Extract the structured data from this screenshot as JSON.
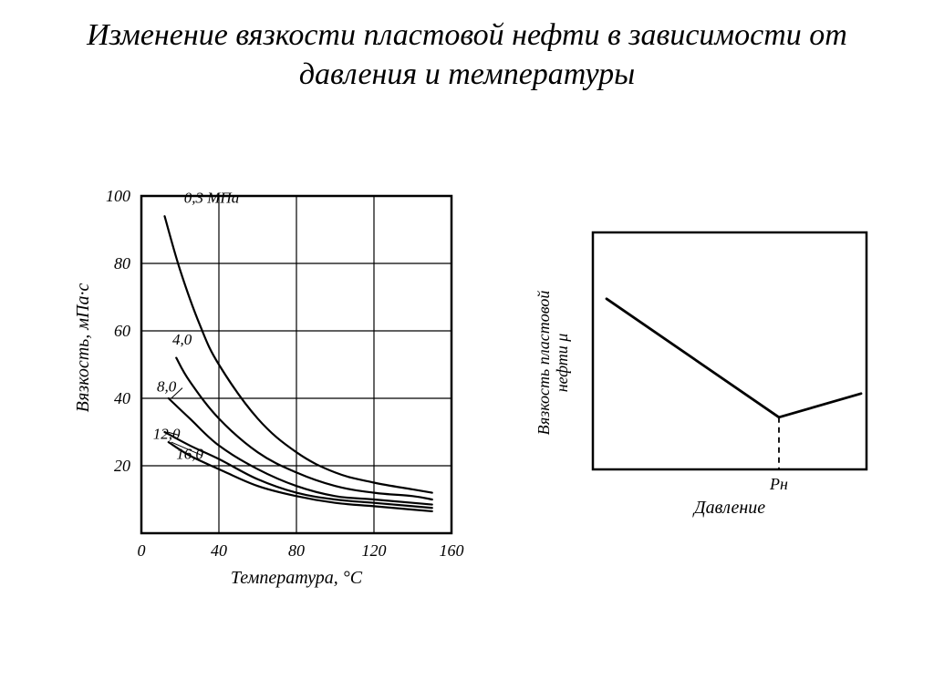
{
  "title": "Изменение вязкости пластовой нефти в зависимости от давления и температуры",
  "colors": {
    "background": "#ffffff",
    "ink": "#000000",
    "title": "#1a1a1a"
  },
  "title_fontsize": 34,
  "label_font": "italic 18px serif",
  "axis_font": "italic 16px serif",
  "chart_left": {
    "type": "line",
    "x_label": "Температура, °С",
    "y_label": "Вязкость, мПа·с",
    "xlim": [
      0,
      160
    ],
    "ylim": [
      0,
      100
    ],
    "xtick_step": 40,
    "ytick_step": 20,
    "xticks": [
      "0",
      "40",
      "80",
      "120",
      "160"
    ],
    "yticks": [
      "0",
      "20",
      "40",
      "60",
      "80",
      "100"
    ],
    "grid": true,
    "grid_color": "#000000",
    "line_width_axis": 2.5,
    "line_width_grid": 1.2,
    "line_width_curve": 2.2,
    "unit_annotation": "мПа",
    "series": [
      {
        "label": "0,3",
        "label_suffix": " МПа",
        "points": [
          [
            12,
            94
          ],
          [
            20,
            78
          ],
          [
            30,
            62
          ],
          [
            40,
            50
          ],
          [
            60,
            34
          ],
          [
            80,
            24
          ],
          [
            100,
            18
          ],
          [
            120,
            15
          ],
          [
            140,
            13
          ],
          [
            150,
            12
          ]
        ]
      },
      {
        "label": "4,0",
        "points": [
          [
            18,
            52
          ],
          [
            25,
            45
          ],
          [
            40,
            34
          ],
          [
            60,
            24
          ],
          [
            80,
            18
          ],
          [
            100,
            14
          ],
          [
            120,
            12
          ],
          [
            140,
            11
          ],
          [
            150,
            10
          ]
        ]
      },
      {
        "label": "8,0",
        "points": [
          [
            14,
            40
          ],
          [
            25,
            34
          ],
          [
            40,
            26
          ],
          [
            60,
            19
          ],
          [
            80,
            14
          ],
          [
            100,
            11
          ],
          [
            120,
            10
          ],
          [
            140,
            9
          ],
          [
            150,
            8.5
          ]
        ]
      },
      {
        "label": "12,0",
        "points": [
          [
            12,
            30
          ],
          [
            25,
            26
          ],
          [
            40,
            22
          ],
          [
            60,
            16
          ],
          [
            80,
            12
          ],
          [
            100,
            10
          ],
          [
            120,
            9
          ],
          [
            140,
            8
          ],
          [
            150,
            7.5
          ]
        ]
      },
      {
        "label": "16,0",
        "points": [
          [
            14,
            27
          ],
          [
            25,
            23
          ],
          [
            40,
            19
          ],
          [
            60,
            14
          ],
          [
            80,
            11
          ],
          [
            100,
            9
          ],
          [
            120,
            8
          ],
          [
            140,
            7
          ],
          [
            150,
            6.5
          ]
        ]
      }
    ],
    "series_label_positions": [
      {
        "x": 22,
        "y": 98
      },
      {
        "x": 16,
        "y": 56
      },
      {
        "x": 8,
        "y": 42
      },
      {
        "x": 6,
        "y": 28
      },
      {
        "x": 18,
        "y": 22
      }
    ]
  },
  "chart_right": {
    "type": "line_schematic",
    "x_label": "Давление",
    "y_label": "Вязкость пластовой\nнефти μ",
    "marker_label": "Pн",
    "line_width_axis": 2.5,
    "line_width_curve": 2.8,
    "points_down": [
      [
        0.05,
        0.72
      ],
      [
        0.35,
        0.48
      ],
      [
        0.68,
        0.22
      ]
    ],
    "points_up": [
      [
        0.68,
        0.22
      ],
      [
        0.98,
        0.32
      ]
    ],
    "marker_x": 0.68
  }
}
